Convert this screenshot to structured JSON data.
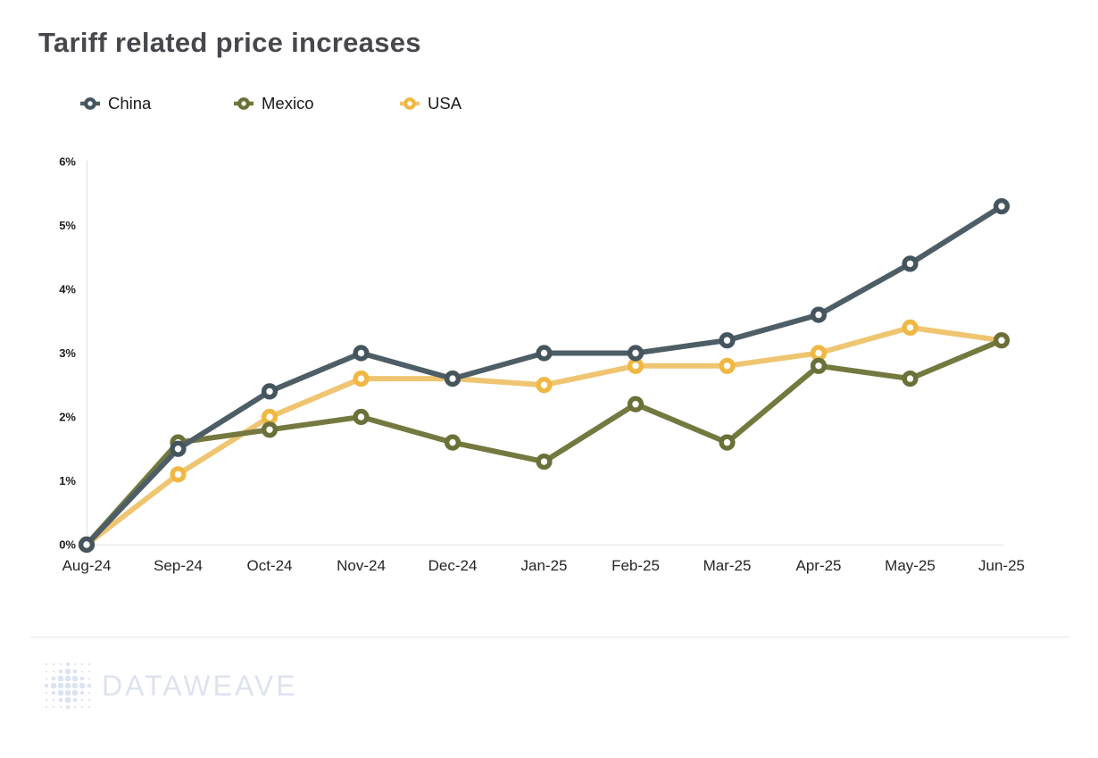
{
  "page": {
    "title": "Tariff related price increases"
  },
  "legend": {
    "items": [
      {
        "label": "China"
      },
      {
        "label": "Mexico"
      },
      {
        "label": "USA"
      }
    ]
  },
  "chart_data": {
    "type": "line",
    "title": "Tariff related price increases",
    "xlabel": "",
    "ylabel": "",
    "x": [
      "Aug-24",
      "Sep-24",
      "Oct-24",
      "Nov-24",
      "Dec-24",
      "Jan-25",
      "Feb-25",
      "Mar-25",
      "Apr-25",
      "May-25",
      "Jun-25"
    ],
    "y_ticks": [
      "0%",
      "1%",
      "2%",
      "3%",
      "4%",
      "5%",
      "6%"
    ],
    "ylim": [
      0,
      6
    ],
    "unit": "%",
    "grid": false,
    "legend_position": "top-left",
    "series": [
      {
        "name": "USA",
        "line_color": "#EFC571",
        "marker_color": "#F0B843",
        "values": [
          0,
          1.1,
          2.0,
          2.6,
          2.6,
          2.5,
          2.8,
          2.8,
          3.0,
          3.4,
          3.2
        ]
      },
      {
        "name": "Mexico",
        "line_color": "#74793F",
        "marker_color": "#6B7038",
        "values": [
          0,
          1.6,
          1.8,
          2.0,
          1.6,
          1.3,
          2.2,
          1.6,
          2.8,
          2.6,
          3.2
        ]
      },
      {
        "name": "China",
        "line_color": "#4E5E67",
        "marker_color": "#45555E",
        "values": [
          0,
          1.5,
          2.4,
          3.0,
          2.6,
          3.0,
          3.0,
          3.2,
          3.6,
          4.4,
          5.3
        ]
      }
    ],
    "draw_order_note": "USA drawn first (bottom), then Mexico, China on top",
    "axis_color": "#e5e5e3"
  },
  "footer": {
    "brand": "DATAWEAVE"
  }
}
